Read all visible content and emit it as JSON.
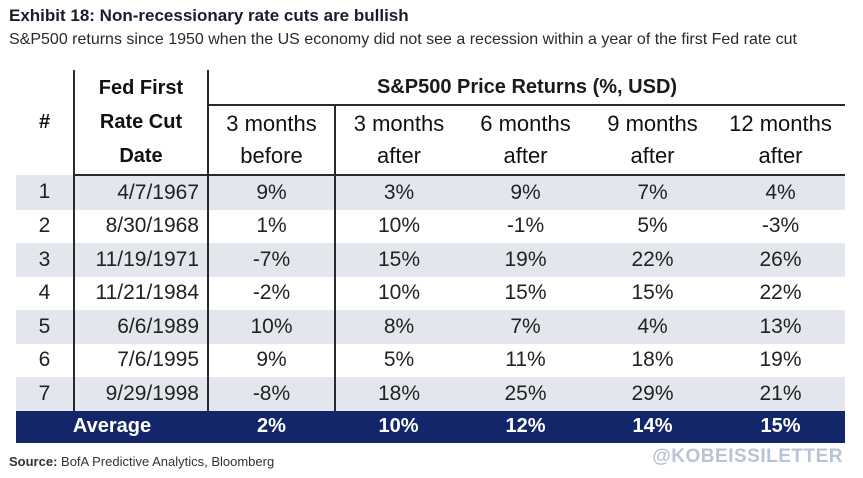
{
  "title": "Exhibit 18: Non-recessionary rate cuts are bullish",
  "subtitle": "S&P500 returns since 1950 when the US economy did not see a recession within a year of the first Fed rate cut",
  "table": {
    "col_num": "#",
    "col_date_lines": [
      "Fed First",
      "Rate Cut",
      "Date"
    ],
    "group_header": "S&P500 Price Returns (%, USD)",
    "sub_headers": [
      [
        "3 months",
        "before"
      ],
      [
        "3 months",
        "after"
      ],
      [
        "6 months",
        "after"
      ],
      [
        "9 months",
        "after"
      ],
      [
        "12 months",
        "after"
      ]
    ],
    "rows": [
      {
        "num": "1",
        "date": "4/7/1967",
        "values": [
          "9%",
          "3%",
          "9%",
          "7%",
          "4%"
        ]
      },
      {
        "num": "2",
        "date": "8/30/1968",
        "values": [
          "1%",
          "10%",
          "-1%",
          "5%",
          "-3%"
        ]
      },
      {
        "num": "3",
        "date": "11/19/1971",
        "values": [
          "-7%",
          "15%",
          "19%",
          "22%",
          "26%"
        ]
      },
      {
        "num": "4",
        "date": "11/21/1984",
        "values": [
          "-2%",
          "10%",
          "15%",
          "15%",
          "22%"
        ]
      },
      {
        "num": "5",
        "date": "6/6/1989",
        "values": [
          "10%",
          "8%",
          "7%",
          "4%",
          "13%"
        ]
      },
      {
        "num": "6",
        "date": "7/6/1995",
        "values": [
          "9%",
          "5%",
          "11%",
          "18%",
          "19%"
        ]
      },
      {
        "num": "7",
        "date": "9/29/1998",
        "values": [
          "-8%",
          "18%",
          "25%",
          "29%",
          "21%"
        ]
      }
    ],
    "average": {
      "label": "Average",
      "values": [
        "2%",
        "10%",
        "12%",
        "14%",
        "15%"
      ]
    }
  },
  "source": {
    "label": "Source:",
    "text": "BofA Predictive Analytics, Bloomberg"
  },
  "watermark": "@KOBEISSILETTER",
  "colors": {
    "average_bg": "#14266a",
    "shade_bg": "#e3e6ec",
    "watermark": "#b9c3d6"
  }
}
